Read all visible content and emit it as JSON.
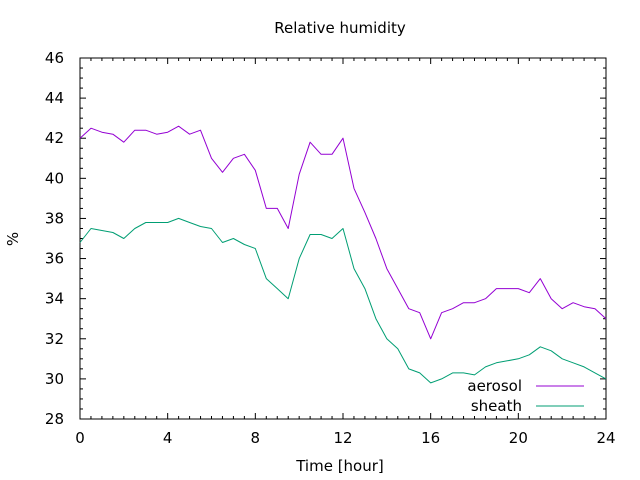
{
  "chart_data": {
    "type": "line",
    "title": "Relative humidity",
    "xlabel": "Time [hour]",
    "ylabel": "%",
    "xlim": [
      0,
      24
    ],
    "ylim": [
      28,
      46
    ],
    "x_ticks": [
      0,
      4,
      8,
      12,
      16,
      20,
      24
    ],
    "y_ticks": [
      28,
      30,
      32,
      34,
      36,
      38,
      40,
      42,
      44,
      46
    ],
    "x_minor_step": 0.5,
    "y_minor_step": 0.5,
    "grid": false,
    "legend_position": "bottom-right",
    "series": [
      {
        "name": "aerosol",
        "color": "#9400d3",
        "x": [
          0,
          0.5,
          1,
          1.5,
          2,
          2.5,
          3,
          3.5,
          4,
          4.5,
          5,
          5.5,
          6,
          6.5,
          7,
          7.5,
          8,
          8.5,
          9,
          9.5,
          10,
          10.5,
          11,
          11.5,
          12,
          12.5,
          13,
          13.5,
          14,
          14.5,
          15,
          15.5,
          16,
          16.5,
          17,
          17.5,
          18,
          18.5,
          19,
          19.5,
          20,
          20.5,
          21,
          21.5,
          22,
          22.5,
          23,
          23.5,
          24
        ],
        "y": [
          42.0,
          42.5,
          42.3,
          42.2,
          41.8,
          42.4,
          42.4,
          42.2,
          42.3,
          42.6,
          42.2,
          42.4,
          41.0,
          40.3,
          41.0,
          41.2,
          40.4,
          38.5,
          38.5,
          37.5,
          40.2,
          41.8,
          41.2,
          41.2,
          42.0,
          39.5,
          38.3,
          37.0,
          35.5,
          34.5,
          33.5,
          33.3,
          32.0,
          33.3,
          33.5,
          33.8,
          33.8,
          34.0,
          34.5,
          34.5,
          34.5,
          34.3,
          35.0,
          34.0,
          33.5,
          33.8,
          33.6,
          33.5,
          33.0
        ]
      },
      {
        "name": "sheath",
        "color": "#009e73",
        "x": [
          0,
          0.5,
          1,
          1.5,
          2,
          2.5,
          3,
          3.5,
          4,
          4.5,
          5,
          5.5,
          6,
          6.5,
          7,
          7.5,
          8,
          8.5,
          9,
          9.5,
          10,
          10.5,
          11,
          11.5,
          12,
          12.5,
          13,
          13.5,
          14,
          14.5,
          15,
          15.5,
          16,
          16.5,
          17,
          17.5,
          18,
          18.5,
          19,
          19.5,
          20,
          20.5,
          21,
          21.5,
          22,
          22.5,
          23,
          23.5,
          24
        ],
        "y": [
          36.8,
          37.5,
          37.4,
          37.3,
          37.0,
          37.5,
          37.8,
          37.8,
          37.8,
          38.0,
          37.8,
          37.6,
          37.5,
          36.8,
          37.0,
          36.7,
          36.5,
          35.0,
          34.5,
          34.0,
          36.0,
          37.2,
          37.2,
          37.0,
          37.5,
          35.5,
          34.5,
          33.0,
          32.0,
          31.5,
          30.5,
          30.3,
          29.8,
          30.0,
          30.3,
          30.3,
          30.2,
          30.6,
          30.8,
          30.9,
          31.0,
          31.2,
          31.6,
          31.4,
          31.0,
          30.8,
          30.6,
          30.3,
          30.0
        ]
      }
    ]
  }
}
